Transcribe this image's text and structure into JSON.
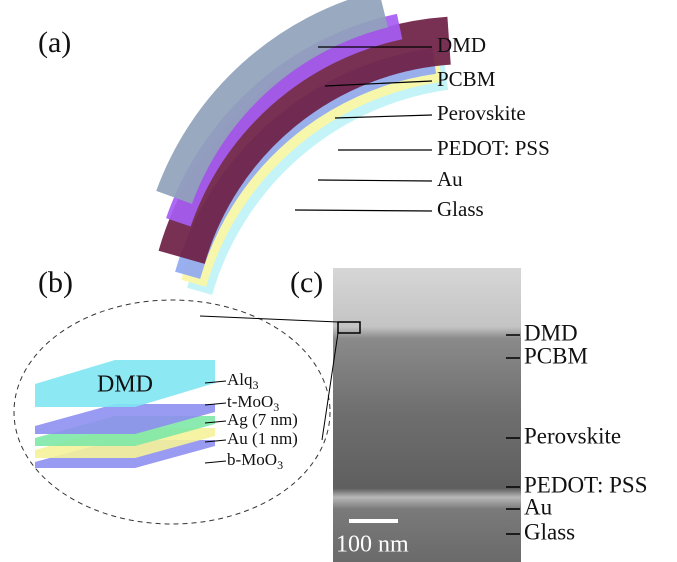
{
  "panel_a": {
    "label": "(a)",
    "layers": [
      "DMD",
      "PCBM",
      "Perovskite",
      "PEDOT: PSS",
      "Au",
      "Glass"
    ]
  },
  "panel_b": {
    "label": "(b)",
    "center_label": "DMD",
    "layers": [
      {
        "text": "Alq",
        "sub": "3"
      },
      {
        "text": "t-MoO",
        "sub": "3"
      },
      {
        "text": "Ag (7 nm)"
      },
      {
        "text": "Au (1 nm)"
      },
      {
        "text": "b-MoO",
        "sub": "3"
      }
    ]
  },
  "panel_c": {
    "label": "(c)",
    "layers": [
      "DMD",
      "PCBM",
      "Perovskite",
      "PEDOT: PSS",
      "Au",
      "Glass"
    ],
    "scale_bar": "100 nm"
  }
}
